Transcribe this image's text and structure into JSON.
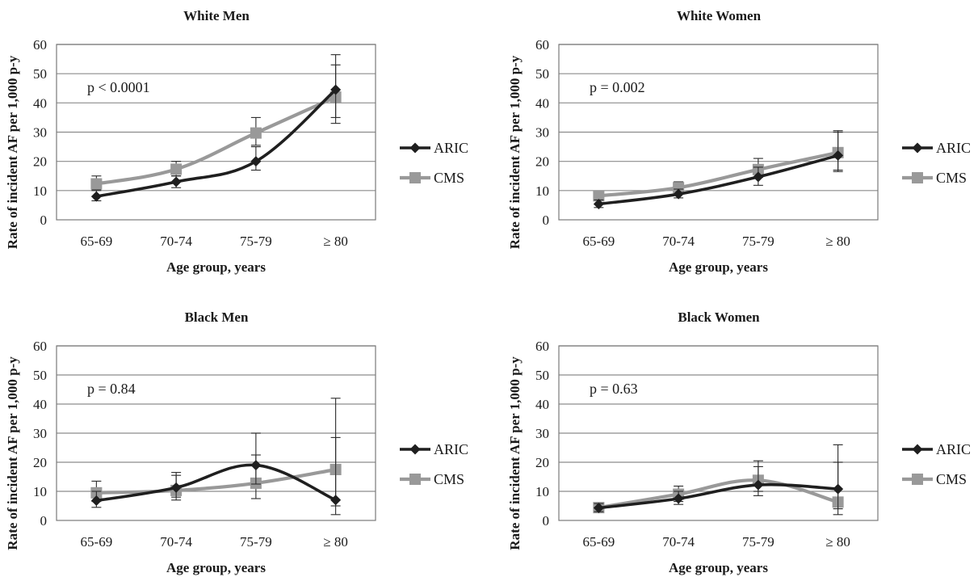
{
  "chart_data": [
    {
      "type": "line",
      "title": "White Men",
      "xlabel": "Age group, years",
      "ylabel": "Rate of incident AF per 1,000 p-y",
      "categories": [
        "65-69",
        "70-74",
        "75-79",
        "≥ 80"
      ],
      "ylim": [
        0,
        60
      ],
      "yticks": [
        0,
        10,
        20,
        30,
        40,
        50,
        60
      ],
      "grid": true,
      "legend": "right",
      "annotation": "p < 0.0001",
      "series": [
        {
          "name": "ARIC",
          "color": "#1f1f1f",
          "marker": "diamond",
          "values": [
            8,
            13,
            20,
            44.5
          ],
          "err_low": [
            6.5,
            11,
            17,
            35
          ],
          "err_high": [
            10,
            15,
            25,
            56.5
          ]
        },
        {
          "name": "CMS",
          "color": "#999999",
          "marker": "square",
          "values": [
            12.3,
            17.3,
            29.7,
            42
          ],
          "err_low": [
            10.3,
            15,
            25.5,
            33
          ],
          "err_high": [
            15,
            20,
            35,
            53
          ]
        }
      ]
    },
    {
      "type": "line",
      "title": "White Women",
      "xlabel": "Age group, years",
      "ylabel": "Rate of incident AF per 1,000 p-y",
      "categories": [
        "65-69",
        "70-74",
        "75-79",
        "≥ 80"
      ],
      "ylim": [
        0,
        60
      ],
      "yticks": [
        0,
        10,
        20,
        30,
        40,
        50,
        60
      ],
      "grid": true,
      "legend": "right",
      "annotation": "p = 0.002",
      "series": [
        {
          "name": "ARIC",
          "color": "#1f1f1f",
          "marker": "diamond",
          "values": [
            5.4,
            8.8,
            14.7,
            22
          ],
          "err_low": [
            4.2,
            7.5,
            11.8,
            16.5
          ],
          "err_high": [
            6.8,
            10.5,
            18,
            30
          ]
        },
        {
          "name": "CMS",
          "color": "#999999",
          "marker": "square",
          "values": [
            8.2,
            11,
            17.2,
            23
          ],
          "err_low": [
            7,
            9.5,
            14.5,
            17
          ],
          "err_high": [
            9.5,
            13,
            21,
            30.5
          ]
        }
      ]
    },
    {
      "type": "line",
      "title": "Black Men",
      "xlabel": "Age group, years",
      "ylabel": "Rate of incident AF per 1,000 p-y",
      "categories": [
        "65-69",
        "70-74",
        "75-79",
        "≥ 80"
      ],
      "ylim": [
        0,
        60
      ],
      "yticks": [
        0,
        10,
        20,
        30,
        40,
        50,
        60
      ],
      "grid": true,
      "legend": "right",
      "annotation": "p = 0.84",
      "series": [
        {
          "name": "ARIC",
          "color": "#1f1f1f",
          "marker": "diamond",
          "values": [
            6.8,
            11.3,
            19,
            7
          ],
          "err_low": [
            4.5,
            8,
            12.5,
            2
          ],
          "err_high": [
            10,
            16.5,
            30,
            28.5
          ]
        },
        {
          "name": "CMS",
          "color": "#999999",
          "marker": "square",
          "values": [
            9.5,
            10.3,
            12.8,
            17.5
          ],
          "err_low": [
            6.5,
            7,
            7.5,
            5
          ],
          "err_high": [
            13.5,
            15.5,
            22.5,
            42
          ]
        }
      ]
    },
    {
      "type": "line",
      "title": "Black Women",
      "xlabel": "Age group, years",
      "ylabel": "Rate of incident AF per 1,000 p-y",
      "categories": [
        "65-69",
        "70-74",
        "75-79",
        "≥ 80"
      ],
      "ylim": [
        0,
        60
      ],
      "yticks": [
        0,
        10,
        20,
        30,
        40,
        50,
        60
      ],
      "grid": true,
      "legend": "right",
      "annotation": "p = 0.63",
      "series": [
        {
          "name": "ARIC",
          "color": "#1f1f1f",
          "marker": "diamond",
          "values": [
            4.3,
            7.5,
            12.2,
            10.8
          ],
          "err_low": [
            3,
            5.5,
            8.5,
            4
          ],
          "err_high": [
            5.8,
            10,
            18.5,
            26
          ]
        },
        {
          "name": "CMS",
          "color": "#999999",
          "marker": "square",
          "values": [
            4.4,
            9,
            13.8,
            6.3
          ],
          "err_low": [
            3.2,
            6.5,
            10,
            2
          ],
          "err_high": [
            5.8,
            11.8,
            20.5,
            20
          ]
        }
      ]
    }
  ]
}
